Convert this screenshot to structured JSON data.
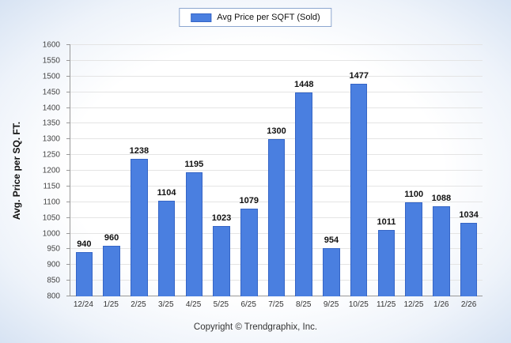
{
  "chart_data": {
    "type": "bar",
    "title": "",
    "legend_label": "Avg Price per SQFT (Sold)",
    "categories": [
      "12/24",
      "1/25",
      "2/25",
      "3/25",
      "4/25",
      "5/25",
      "6/25",
      "7/25",
      "8/25",
      "9/25",
      "10/25",
      "11/25",
      "12/25",
      "1/26",
      "2/26"
    ],
    "values": [
      940,
      960,
      1238,
      1104,
      1195,
      1023,
      1079,
      1300,
      1448,
      954,
      1477,
      1011,
      1100,
      1088,
      1034
    ],
    "xlabel": "",
    "ylabel": "Avg. Price per SQ. FT.",
    "ylim": [
      800,
      1600
    ],
    "yticks": [
      800,
      850,
      900,
      950,
      1000,
      1050,
      1100,
      1150,
      1200,
      1250,
      1300,
      1350,
      1400,
      1450,
      1500,
      1550,
      1600
    ],
    "grid": true,
    "legend_position": "top",
    "bar_color": "#4a7fe0",
    "bar_border_color": "#3565c6"
  },
  "footer": {
    "copyright": "Copyright © Trendgraphix, Inc."
  }
}
